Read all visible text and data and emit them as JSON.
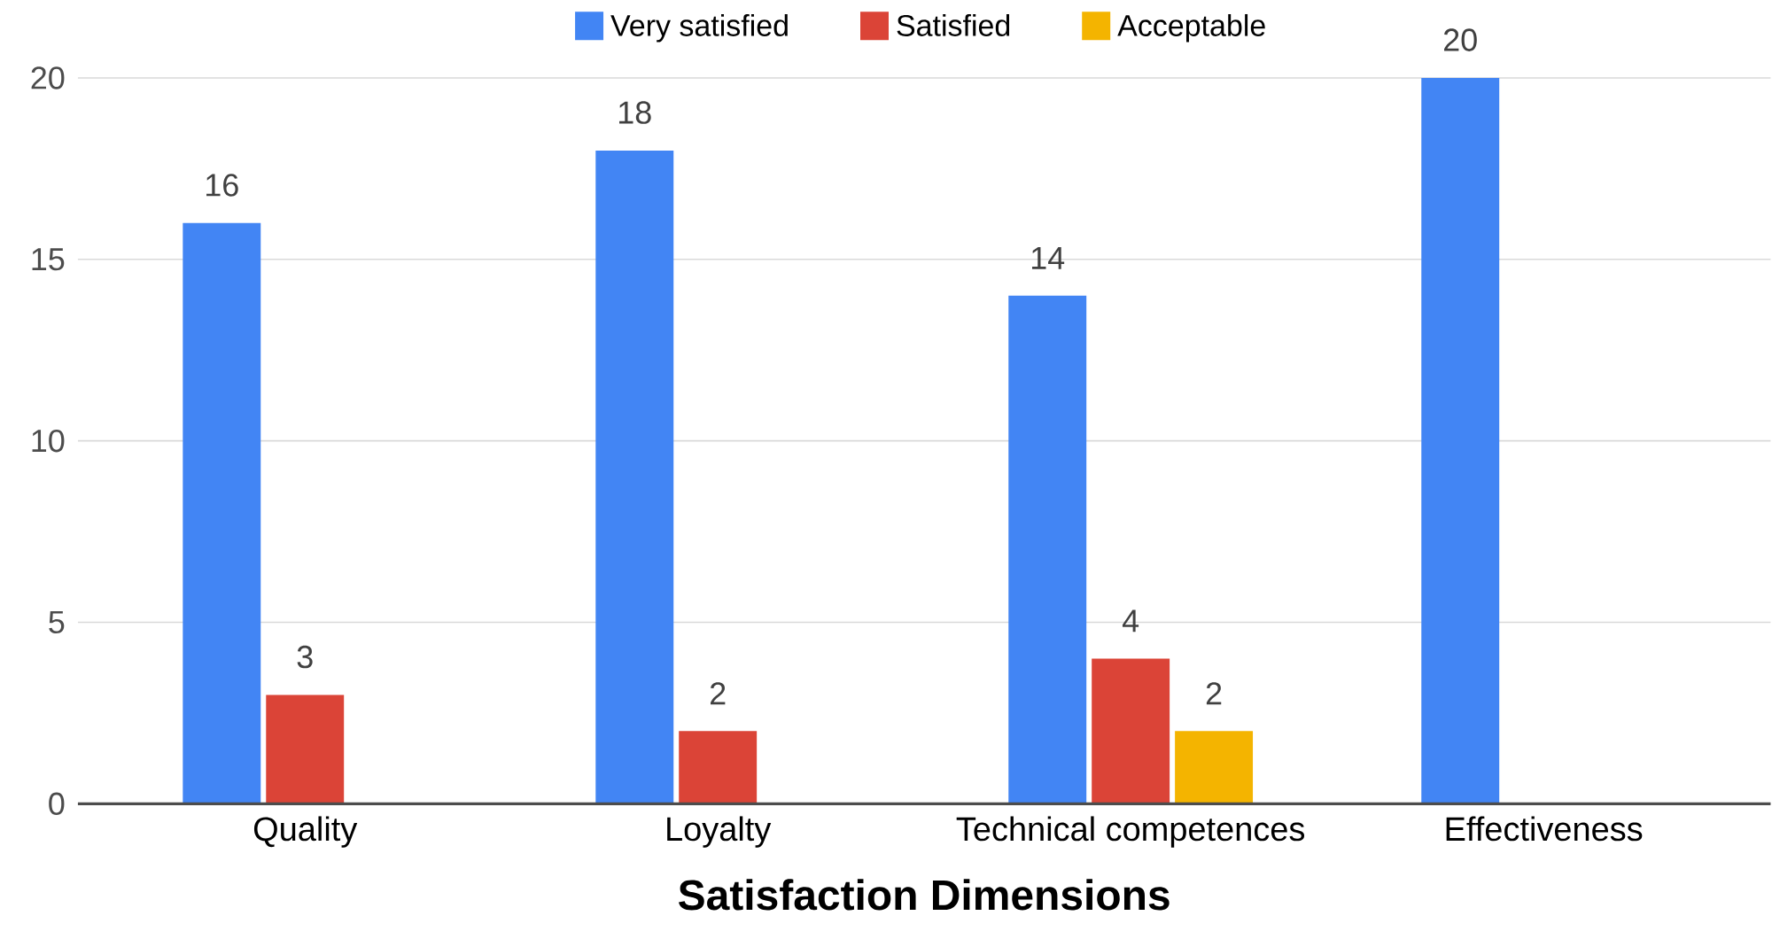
{
  "chart_data": {
    "type": "bar",
    "xlabel": "Satisfaction Dimensions",
    "categories": [
      "Quality",
      "Loyalty",
      "Technical competences",
      "Effectiveness"
    ],
    "series": [
      {
        "name": "Very satisfied",
        "color": "#4285f4",
        "values": [
          16,
          18,
          14,
          20
        ]
      },
      {
        "name": "Satisfied",
        "color": "#db4437",
        "values": [
          3,
          2,
          4,
          null
        ]
      },
      {
        "name": "Acceptable",
        "color": "#f4b400",
        "values": [
          null,
          null,
          2,
          null
        ]
      }
    ],
    "ylim": [
      0,
      20
    ],
    "yticks": [
      0,
      5,
      10,
      15,
      20
    ],
    "grid": "y",
    "legend": "top",
    "data_labels": true
  }
}
